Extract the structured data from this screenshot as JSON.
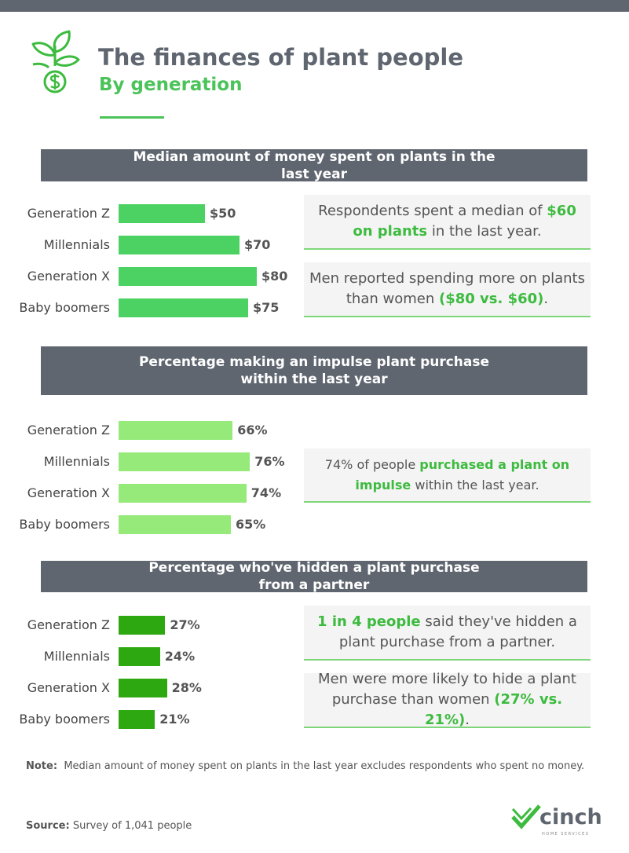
{
  "header": {
    "title": "The finances of plant people",
    "subtitle": "By generation"
  },
  "chart_data": [
    {
      "type": "bar",
      "orientation": "horizontal",
      "title": "Median amount of money spent on plants in the last year",
      "categories": [
        "Generation Z",
        "Millennials",
        "Generation X",
        "Baby boomers"
      ],
      "values": [
        50,
        70,
        80,
        75
      ],
      "value_labels": [
        "$50",
        "$70",
        "$80",
        "$75"
      ],
      "color": "#4cd263",
      "callouts": [
        {
          "parts": [
            {
              "text": "Respondents spent a median of "
            },
            {
              "text": "$60 on plants",
              "highlight": true
            },
            {
              "text": " in the last year."
            }
          ]
        },
        {
          "parts": [
            {
              "text": "Men reported spending more on plants than women "
            },
            {
              "text": "($80 vs. $60)",
              "highlight": true
            },
            {
              "text": "."
            }
          ]
        }
      ]
    },
    {
      "type": "bar",
      "orientation": "horizontal",
      "title": "Percentage making an impulse plant purchase within the last year",
      "categories": [
        "Generation Z",
        "Millennials",
        "Generation X",
        "Baby boomers"
      ],
      "values": [
        66,
        76,
        74,
        65
      ],
      "value_labels": [
        "66%",
        "76%",
        "74%",
        "65%"
      ],
      "color": "#95ea7a",
      "callouts": [
        {
          "parts": [
            {
              "text": "74% of people "
            },
            {
              "text": "purchased a plant on impulse",
              "highlight": true
            },
            {
              "text": " within the last year."
            }
          ]
        }
      ]
    },
    {
      "type": "bar",
      "orientation": "horizontal",
      "title": "Percentage who've hidden a plant purchase from a partner",
      "categories": [
        "Generation Z",
        "Millennials",
        "Generation X",
        "Baby boomers"
      ],
      "values": [
        27,
        24,
        28,
        21
      ],
      "value_labels": [
        "27%",
        "24%",
        "28%",
        "21%"
      ],
      "color": "#2ea811",
      "callouts": [
        {
          "parts": [
            {
              "text": "1 in 4 people",
              "highlight": true
            },
            {
              "text": " said they've hidden a plant purchase from a partner."
            }
          ]
        },
        {
          "parts": [
            {
              "text": "Men were more likely to hide a plant purchase than women "
            },
            {
              "text": "(27% vs. 21%)",
              "highlight": true
            },
            {
              "text": "."
            }
          ]
        }
      ]
    }
  ],
  "note": {
    "label": "Note:",
    "text": "Median amount of money spent on plants in the last year excludes respondents who spent no money."
  },
  "source": {
    "label": "Source:",
    "text": "Survey of 1,041 people"
  },
  "logo": {
    "name": "cinch",
    "tagline": "HOME SERVICES"
  }
}
